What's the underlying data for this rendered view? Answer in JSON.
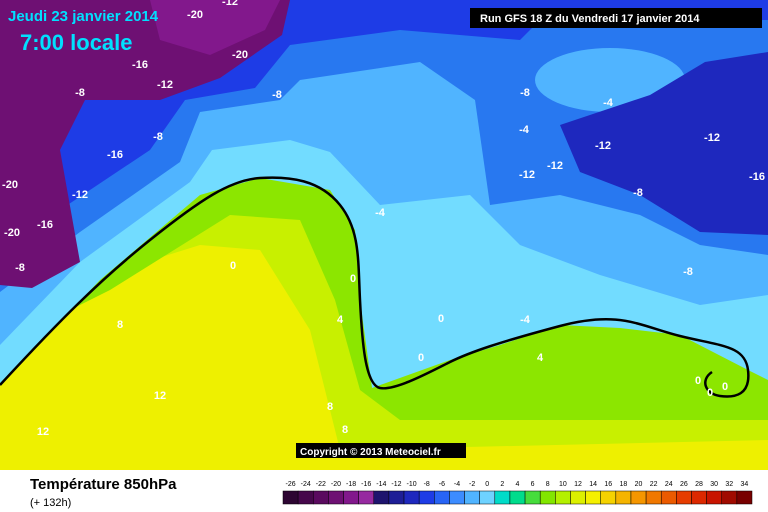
{
  "header": {
    "date": "Jeudi 23 janvier 2014",
    "time": "7:00 locale",
    "run": "Run GFS 18 Z du Vendredi 17 janvier 2014"
  },
  "copyright": "Copyright © 2013 Meteociel.fr",
  "footer": {
    "title": "Température 850hPa",
    "lead": "(+ 132h)"
  },
  "scale": {
    "labels": [
      -26,
      -24,
      -22,
      -20,
      -18,
      -16,
      -14,
      -12,
      -10,
      -8,
      -6,
      -4,
      -2,
      0,
      2,
      4,
      6,
      8,
      10,
      12,
      14,
      16,
      18,
      20,
      22,
      24,
      26,
      28,
      30,
      32,
      34
    ],
    "colors": [
      "#2d0532",
      "#46084b",
      "#5a0a5f",
      "#6e1073",
      "#82188c",
      "#962aa0",
      "#1e146e",
      "#1e1e96",
      "#1e28be",
      "#1e3ce6",
      "#2864f5",
      "#3c8cff",
      "#50b4ff",
      "#6ed2ff",
      "#00dcc8",
      "#00dc8c",
      "#46dc3c",
      "#82e600",
      "#b4f000",
      "#dcf000",
      "#f5f000",
      "#f5d200",
      "#f5b400",
      "#f59600",
      "#f07800",
      "#eb5a00",
      "#e63c00",
      "#dc2800",
      "#c81400",
      "#a00a00",
      "#780000"
    ]
  },
  "contour_labels": [
    -20,
    -12,
    -16,
    -12,
    -20,
    -8,
    -8,
    -16,
    -8,
    -12,
    -20,
    -16,
    -20,
    -8,
    -8,
    -4,
    -4,
    -12,
    -12,
    -12,
    -12,
    -8,
    -16,
    -8,
    -4,
    0,
    4,
    0,
    8,
    0,
    -4,
    0,
    4,
    12,
    8,
    8,
    12,
    0,
    0,
    0
  ]
}
